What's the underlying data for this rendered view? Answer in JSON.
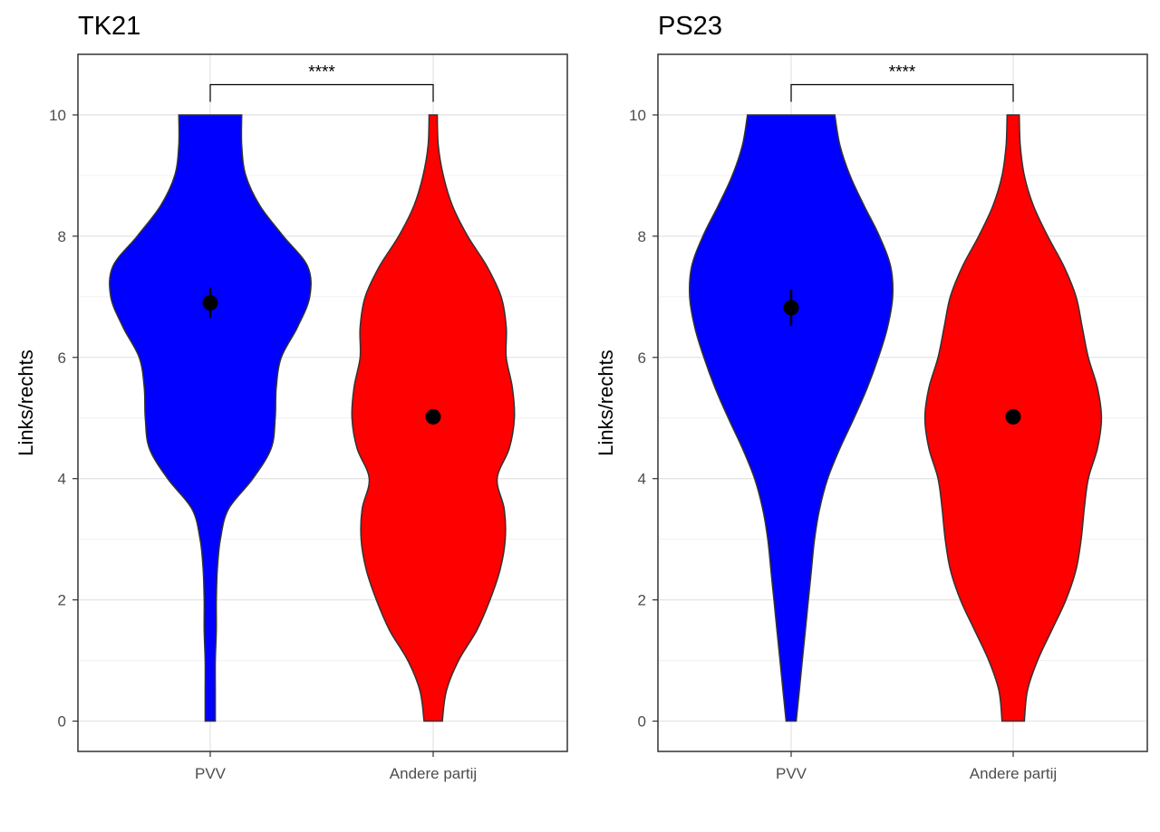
{
  "chart_data": [
    {
      "type": "violin",
      "title": "TK21",
      "ylabel": "Links/rechts",
      "xlabel": "",
      "ylim": [
        -0.5,
        11
      ],
      "yticks": [
        0,
        2,
        4,
        6,
        8,
        10
      ],
      "grid": true,
      "categories": [
        "PVV",
        "Andere partij"
      ],
      "colors": [
        "#0000ff",
        "#ff0000"
      ],
      "means": [
        6.9,
        5.02
      ],
      "errors": [
        [
          6.65,
          7.15
        ],
        [
          4.95,
          5.09
        ]
      ],
      "significance": {
        "label": "****",
        "between": [
          "PVV",
          "Andere partij"
        ],
        "y": 10.5
      },
      "densities": [
        {
          "category": "PVV",
          "y": [
            0,
            0.5,
            1,
            1.5,
            2,
            2.5,
            3,
            3.5,
            4,
            4.5,
            5,
            5.5,
            6,
            6.5,
            7,
            7.5,
            8,
            8.5,
            9,
            9.5,
            10
          ],
          "halfwidth": [
            0.05,
            0.05,
            0.05,
            0.06,
            0.06,
            0.07,
            0.1,
            0.18,
            0.42,
            0.6,
            0.64,
            0.65,
            0.7,
            0.86,
            0.98,
            0.96,
            0.72,
            0.49,
            0.35,
            0.31,
            0.31
          ]
        },
        {
          "category": "Andere partij",
          "y": [
            0,
            0.5,
            1,
            1.5,
            2,
            2.5,
            3,
            3.5,
            4,
            4.5,
            5,
            5.5,
            6,
            6.5,
            7,
            7.5,
            8,
            8.5,
            9,
            9.5,
            10
          ],
          "halfwidth": [
            0.09,
            0.13,
            0.25,
            0.43,
            0.56,
            0.66,
            0.71,
            0.7,
            0.63,
            0.75,
            0.8,
            0.78,
            0.72,
            0.72,
            0.67,
            0.53,
            0.34,
            0.19,
            0.1,
            0.05,
            0.04
          ]
        }
      ]
    },
    {
      "type": "violin",
      "title": "PS23",
      "ylabel": "Links/rechts",
      "xlabel": "",
      "ylim": [
        -0.5,
        11
      ],
      "yticks": [
        0,
        2,
        4,
        6,
        8,
        10
      ],
      "grid": true,
      "categories": [
        "PVV",
        "Andere partij"
      ],
      "colors": [
        "#0000ff",
        "#ff0000"
      ],
      "means": [
        6.82,
        5.02
      ],
      "errors": [
        [
          6.52,
          7.12
        ],
        [
          4.95,
          5.09
        ]
      ],
      "significance": {
        "label": "****",
        "between": [
          "PVV",
          "Andere partij"
        ],
        "y": 10.5
      },
      "densities": [
        {
          "category": "PVV",
          "y": [
            0,
            0.5,
            1,
            1.5,
            2,
            2.5,
            3,
            3.5,
            4,
            4.5,
            5,
            5.5,
            6,
            6.5,
            7,
            7.5,
            8,
            8.5,
            9,
            9.5,
            10
          ],
          "halfwidth": [
            0.05,
            0.08,
            0.11,
            0.14,
            0.17,
            0.2,
            0.23,
            0.28,
            0.36,
            0.48,
            0.62,
            0.75,
            0.86,
            0.95,
            1.0,
            0.98,
            0.87,
            0.72,
            0.58,
            0.48,
            0.43
          ]
        },
        {
          "category": "Andere partij",
          "y": [
            0,
            0.5,
            1,
            1.5,
            2,
            2.5,
            3,
            3.5,
            4,
            4.5,
            5,
            5.5,
            6,
            6.5,
            7,
            7.5,
            8,
            8.5,
            9,
            9.5,
            10
          ],
          "halfwidth": [
            0.11,
            0.14,
            0.24,
            0.38,
            0.52,
            0.62,
            0.67,
            0.7,
            0.74,
            0.83,
            0.87,
            0.83,
            0.74,
            0.68,
            0.62,
            0.5,
            0.34,
            0.2,
            0.11,
            0.07,
            0.06
          ]
        }
      ]
    }
  ]
}
